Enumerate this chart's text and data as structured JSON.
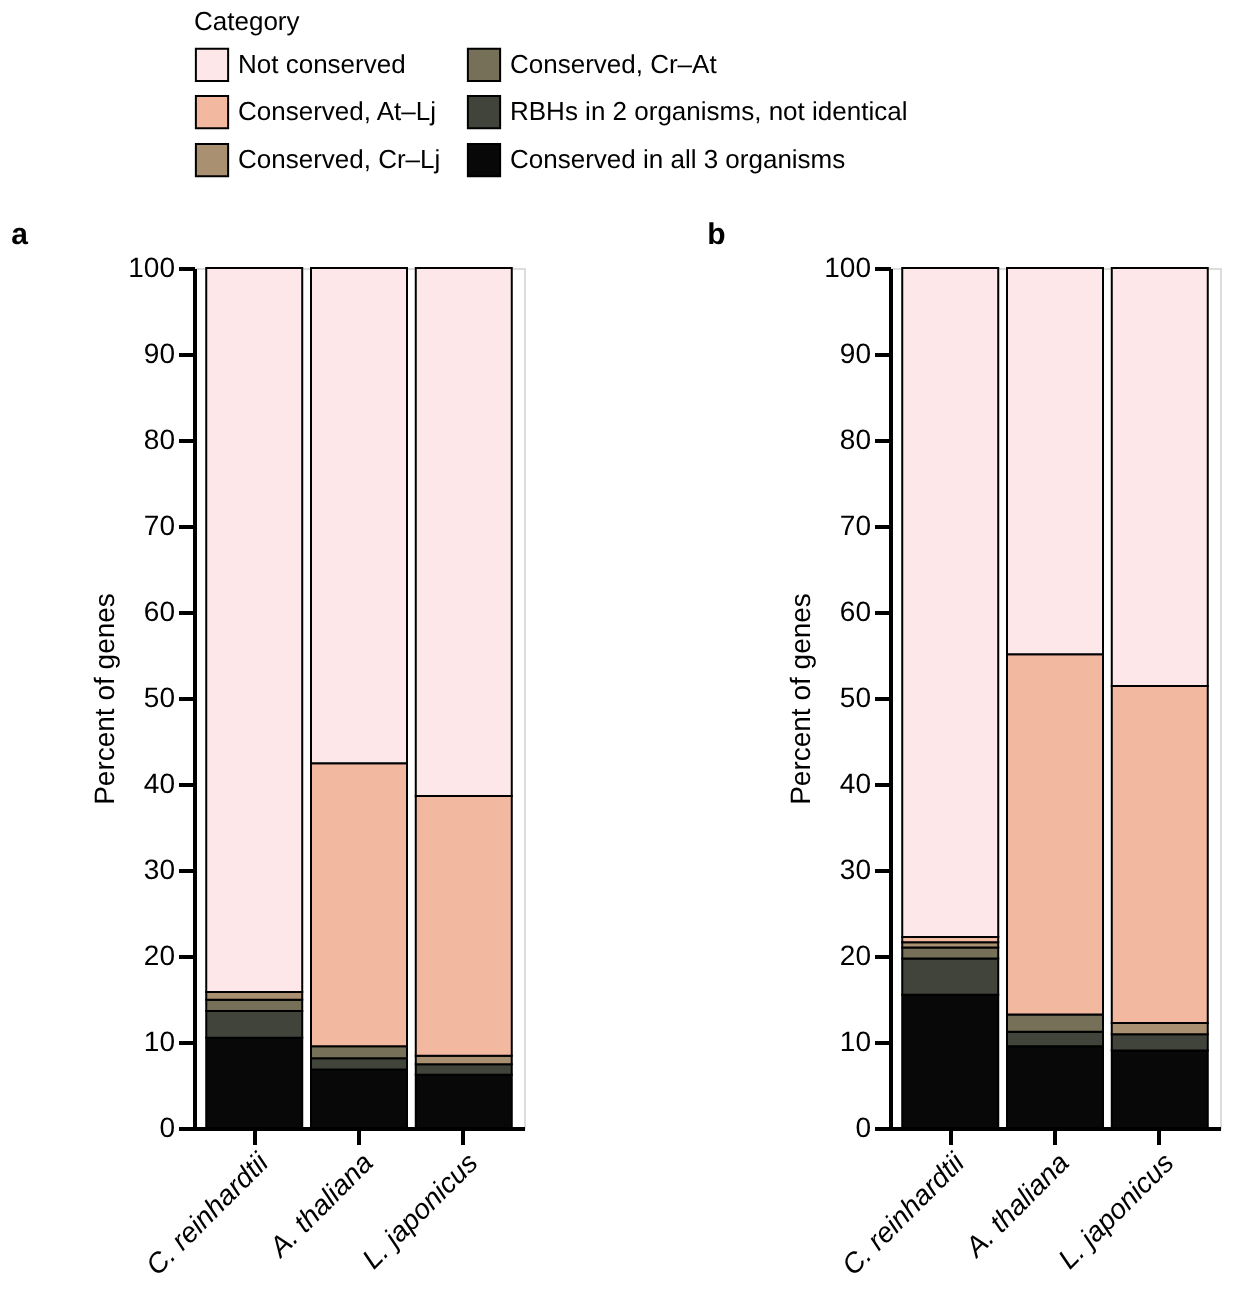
{
  "chart_data": [
    {
      "type": "bar",
      "title": "a",
      "ylabel": "Percent of genes",
      "categories": [
        "C. reinhardtii",
        "A. thaliana",
        "L. japonicus"
      ],
      "stacked": true,
      "ylim": [
        0,
        100
      ],
      "yticks": [
        0,
        10,
        20,
        30,
        40,
        50,
        60,
        70,
        80,
        90,
        100
      ],
      "grid": false,
      "legend": "top",
      "legend_title": "Category",
      "series": [
        {
          "name": "Conserved in all 3 organisms",
          "color": "#080808",
          "values": [
            10.5,
            6.8,
            6.2
          ]
        },
        {
          "name": "RBHs in 2 organisms, not identical",
          "color": "#40443a",
          "values": [
            3.1,
            1.3,
            1.2
          ]
        },
        {
          "name": "Conserved, Cr–At",
          "color": "#767058",
          "values": [
            1.3,
            1.4,
            null
          ]
        },
        {
          "name": "Conserved, Cr–Lj",
          "color": "#a89070",
          "values": [
            0.9,
            null,
            1.0
          ]
        },
        {
          "name": "Conserved, At–Lj",
          "color": "#f2b8a0",
          "values": [
            null,
            32.9,
            30.2
          ]
        },
        {
          "name": "Not conserved",
          "color": "#fde7e8",
          "values": [
            84.2,
            57.6,
            61.4
          ]
        }
      ]
    },
    {
      "type": "bar",
      "title": "b",
      "ylabel": "Percent of genes",
      "categories": [
        "C. reinhardtii",
        "A. thaliana",
        "L. japonicus"
      ],
      "stacked": true,
      "ylim": [
        0,
        100
      ],
      "yticks": [
        0,
        10,
        20,
        30,
        40,
        50,
        60,
        70,
        80,
        90,
        100
      ],
      "grid": false,
      "series": [
        {
          "name": "Conserved in all 3 organisms",
          "color": "#080808",
          "values": [
            15.5,
            9.5,
            9.0
          ]
        },
        {
          "name": "RBHs in 2 organisms, not identical",
          "color": "#40443a",
          "values": [
            4.2,
            1.7,
            1.9
          ]
        },
        {
          "name": "Conserved, Cr–At",
          "color": "#767058",
          "values": [
            1.3,
            2.0,
            null
          ]
        },
        {
          "name": "Conserved, Cr–Lj",
          "color": "#a89070",
          "values": [
            0.6,
            null,
            1.3
          ]
        },
        {
          "name": "Conserved, At–Lj",
          "color": "#f2b8a0",
          "values": [
            0.6,
            41.9,
            39.2
          ]
        },
        {
          "name": "Not conserved",
          "color": "#fde7e8",
          "values": [
            77.8,
            44.9,
            48.6
          ]
        }
      ]
    }
  ]
}
